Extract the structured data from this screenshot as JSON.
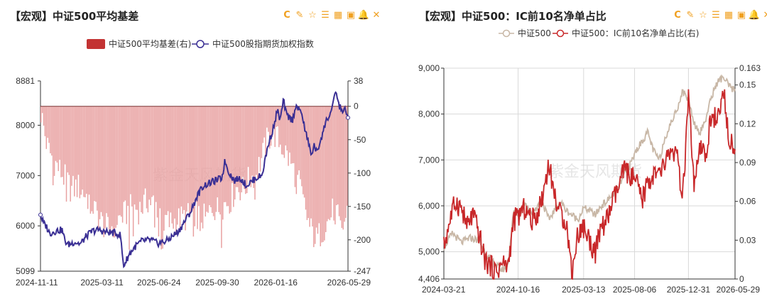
{
  "left_panel": {
    "title": "【宏观】中证500平均基差",
    "watermark": "紫金天风期货",
    "toolbar": [
      {
        "name": "refresh-icon",
        "glyph": "C"
      },
      {
        "name": "edit-icon",
        "glyph": "✎"
      },
      {
        "name": "star-icon",
        "glyph": "☆"
      },
      {
        "name": "list-icon",
        "glyph": "☰"
      },
      {
        "name": "table-icon",
        "glyph": "▦"
      },
      {
        "name": "save-icon",
        "glyph": "▣"
      },
      {
        "name": "bell-icon",
        "glyph": "🔔"
      },
      {
        "name": "expand-icon",
        "glyph": "✕"
      }
    ],
    "chart_data": {
      "type": "bar+line",
      "legend": [
        "中证500平均基差(右)",
        "中证500股指期货加权指数"
      ],
      "legend_placement": "top",
      "colors": {
        "bar": "#e8a0a0",
        "bar_legend": "#c33333",
        "line": "#3a2f94"
      },
      "x_ticks": [
        "2024-11-11",
        "2025-03-11",
        "2025-06-24",
        "2025-09-30",
        "2026-01-16",
        "2026-05-29"
      ],
      "y_left": {
        "ticks": [
          "8881",
          "8000",
          "7000",
          "6000",
          "5099"
        ],
        "min": 5099,
        "max": 8881
      },
      "y_right": {
        "ticks": [
          "38",
          "0",
          "-50",
          "-100",
          "-150",
          "-200",
          "-247"
        ],
        "min": -247,
        "max": 38
      },
      "line_anchors": [
        [
          0,
          6220
        ],
        [
          0.01,
          6050
        ],
        [
          0.02,
          5980
        ],
        [
          0.03,
          5850
        ],
        [
          0.05,
          5900
        ],
        [
          0.07,
          5920
        ],
        [
          0.08,
          5700
        ],
        [
          0.09,
          5620
        ],
        [
          0.11,
          5680
        ],
        [
          0.13,
          5640
        ],
        [
          0.15,
          5800
        ],
        [
          0.17,
          5900
        ],
        [
          0.19,
          5920
        ],
        [
          0.21,
          5880
        ],
        [
          0.24,
          5860
        ],
        [
          0.26,
          5820
        ],
        [
          0.27,
          5200
        ],
        [
          0.29,
          5450
        ],
        [
          0.31,
          5600
        ],
        [
          0.33,
          5700
        ],
        [
          0.36,
          5720
        ],
        [
          0.38,
          5650
        ],
        [
          0.41,
          5700
        ],
        [
          0.43,
          5800
        ],
        [
          0.45,
          5900
        ],
        [
          0.47,
          6100
        ],
        [
          0.49,
          6300
        ],
        [
          0.51,
          6600
        ],
        [
          0.53,
          6800
        ],
        [
          0.55,
          6850
        ],
        [
          0.57,
          6900
        ],
        [
          0.59,
          6950
        ],
        [
          0.6,
          7300
        ],
        [
          0.61,
          7100
        ],
        [
          0.63,
          6900
        ],
        [
          0.65,
          6950
        ],
        [
          0.67,
          6800
        ],
        [
          0.68,
          6850
        ],
        [
          0.7,
          6950
        ],
        [
          0.72,
          7000
        ],
        [
          0.74,
          7600
        ],
        [
          0.76,
          8000
        ],
        [
          0.77,
          8300
        ],
        [
          0.78,
          8100
        ],
        [
          0.79,
          8500
        ],
        [
          0.8,
          8200
        ],
        [
          0.82,
          8100
        ],
        [
          0.83,
          8400
        ],
        [
          0.84,
          8300
        ],
        [
          0.85,
          8250
        ],
        [
          0.86,
          7900
        ],
        [
          0.87,
          7700
        ],
        [
          0.88,
          7400
        ],
        [
          0.89,
          7600
        ],
        [
          0.9,
          7450
        ],
        [
          0.91,
          7700
        ],
        [
          0.92,
          7900
        ],
        [
          0.93,
          8100
        ],
        [
          0.94,
          8200
        ],
        [
          0.95,
          8350
        ],
        [
          0.96,
          8700
        ],
        [
          0.97,
          8400
        ],
        [
          0.98,
          8300
        ],
        [
          0.99,
          8300
        ],
        [
          1,
          8150
        ]
      ],
      "bar_anchors": [
        [
          0,
          -10
        ],
        [
          0.02,
          -60
        ],
        [
          0.04,
          -80
        ],
        [
          0.06,
          -95
        ],
        [
          0.08,
          -110
        ],
        [
          0.1,
          -125
        ],
        [
          0.12,
          -120
        ],
        [
          0.14,
          -130
        ],
        [
          0.16,
          -140
        ],
        [
          0.18,
          -160
        ],
        [
          0.2,
          -175
        ],
        [
          0.22,
          -185
        ],
        [
          0.25,
          -170
        ],
        [
          0.28,
          -160
        ],
        [
          0.3,
          -150
        ],
        [
          0.32,
          -155
        ],
        [
          0.35,
          -140
        ],
        [
          0.38,
          -150
        ],
        [
          0.4,
          -165
        ],
        [
          0.42,
          -175
        ],
        [
          0.45,
          -170
        ],
        [
          0.48,
          -165
        ],
        [
          0.5,
          -160
        ],
        [
          0.52,
          -165
        ],
        [
          0.54,
          -170
        ],
        [
          0.56,
          -150
        ],
        [
          0.58,
          -155
        ],
        [
          0.6,
          -145
        ],
        [
          0.62,
          -140
        ],
        [
          0.64,
          -120
        ],
        [
          0.66,
          -125
        ],
        [
          0.68,
          -110
        ],
        [
          0.7,
          -100
        ],
        [
          0.72,
          -80
        ],
        [
          0.74,
          -50
        ],
        [
          0.76,
          -40
        ],
        [
          0.78,
          -55
        ],
        [
          0.8,
          -70
        ],
        [
          0.82,
          -90
        ],
        [
          0.84,
          -110
        ],
        [
          0.86,
          -150
        ],
        [
          0.88,
          -185
        ],
        [
          0.9,
          -200
        ],
        [
          0.92,
          -185
        ],
        [
          0.94,
          -170
        ],
        [
          0.96,
          -150
        ],
        [
          0.98,
          -190
        ],
        [
          1,
          -160
        ]
      ]
    }
  },
  "right_panel": {
    "title": "【宏观】中证500：IC前10名净单占比",
    "watermark": "紫金天风期货",
    "toolbar": [
      {
        "name": "refresh-icon",
        "glyph": "C"
      },
      {
        "name": "edit-icon",
        "glyph": "✎"
      },
      {
        "name": "star-icon",
        "glyph": "☆"
      },
      {
        "name": "list-icon",
        "glyph": "☰"
      },
      {
        "name": "table-icon",
        "glyph": "▦"
      },
      {
        "name": "save-icon",
        "glyph": "▣"
      },
      {
        "name": "bell-icon",
        "glyph": "🔔"
      },
      {
        "name": "expand-icon",
        "glyph": "✕"
      }
    ],
    "chart_data": {
      "type": "line",
      "legend": [
        "中证500",
        "中证500：IC前10名净单占比(右)"
      ],
      "legend_placement": "top",
      "colors": {
        "series1": "#c8b7a6",
        "series2": "#c8282a"
      },
      "x_ticks": [
        "2024-03-21",
        "2024-10-16",
        "2025-03-13",
        "2025-08-06",
        "2025-12-31",
        "2026-05-29"
      ],
      "y_left": {
        "ticks": [
          "9,000",
          "8,000",
          "7,000",
          "6,000",
          "5,000",
          "4,406"
        ],
        "min": 4406,
        "max": 9000
      },
      "y_right": {
        "ticks": [
          "0.163",
          "0.15",
          "0.12",
          "0.09",
          "0.06",
          "0.03",
          "0"
        ],
        "min": 0,
        "max": 0.163
      },
      "series1_anchors": [
        [
          0,
          5100
        ],
        [
          0.03,
          5400
        ],
        [
          0.06,
          5200
        ],
        [
          0.09,
          5300
        ],
        [
          0.12,
          5250
        ],
        [
          0.15,
          4900
        ],
        [
          0.18,
          4700
        ],
        [
          0.2,
          4600
        ],
        [
          0.22,
          4700
        ],
        [
          0.24,
          5900
        ],
        [
          0.26,
          5800
        ],
        [
          0.28,
          6100
        ],
        [
          0.3,
          5800
        ],
        [
          0.32,
          6000
        ],
        [
          0.34,
          6050
        ],
        [
          0.36,
          5700
        ],
        [
          0.38,
          5900
        ],
        [
          0.4,
          6100
        ],
        [
          0.42,
          5900
        ],
        [
          0.44,
          5800
        ],
        [
          0.46,
          5700
        ],
        [
          0.48,
          5950
        ],
        [
          0.5,
          5900
        ],
        [
          0.52,
          5800
        ],
        [
          0.54,
          6000
        ],
        [
          0.56,
          6100
        ],
        [
          0.58,
          6250
        ],
        [
          0.6,
          6400
        ],
        [
          0.62,
          6700
        ],
        [
          0.64,
          6900
        ],
        [
          0.66,
          7200
        ],
        [
          0.68,
          7400
        ],
        [
          0.7,
          7600
        ],
        [
          0.72,
          7200
        ],
        [
          0.74,
          7000
        ],
        [
          0.76,
          7500
        ],
        [
          0.78,
          7800
        ],
        [
          0.8,
          8100
        ],
        [
          0.82,
          8500
        ],
        [
          0.84,
          8300
        ],
        [
          0.86,
          7800
        ],
        [
          0.88,
          7600
        ],
        [
          0.9,
          7900
        ],
        [
          0.92,
          8400
        ],
        [
          0.94,
          8700
        ],
        [
          0.96,
          8800
        ],
        [
          0.98,
          8600
        ],
        [
          1,
          8500
        ]
      ],
      "series2_anchors": [
        [
          0,
          0.025
        ],
        [
          0.02,
          0.045
        ],
        [
          0.04,
          0.06
        ],
        [
          0.06,
          0.055
        ],
        [
          0.08,
          0.04
        ],
        [
          0.1,
          0.05
        ],
        [
          0.12,
          0.035
        ],
        [
          0.14,
          0.015
        ],
        [
          0.16,
          0.01
        ],
        [
          0.18,
          0.005
        ],
        [
          0.2,
          0.012
        ],
        [
          0.22,
          0.01
        ],
        [
          0.24,
          0.045
        ],
        [
          0.26,
          0.05
        ],
        [
          0.28,
          0.055
        ],
        [
          0.3,
          0.045
        ],
        [
          0.32,
          0.05
        ],
        [
          0.34,
          0.065
        ],
        [
          0.36,
          0.09
        ],
        [
          0.38,
          0.065
        ],
        [
          0.4,
          0.05
        ],
        [
          0.42,
          0.045
        ],
        [
          0.44,
          0.005
        ],
        [
          0.46,
          0.035
        ],
        [
          0.48,
          0.04
        ],
        [
          0.5,
          0.03
        ],
        [
          0.52,
          0.02
        ],
        [
          0.54,
          0.04
        ],
        [
          0.56,
          0.045
        ],
        [
          0.58,
          0.06
        ],
        [
          0.6,
          0.07
        ],
        [
          0.62,
          0.085
        ],
        [
          0.64,
          0.08
        ],
        [
          0.66,
          0.075
        ],
        [
          0.68,
          0.06
        ],
        [
          0.7,
          0.075
        ],
        [
          0.72,
          0.08
        ],
        [
          0.74,
          0.08
        ],
        [
          0.76,
          0.09
        ],
        [
          0.78,
          0.1
        ],
        [
          0.8,
          0.095
        ],
        [
          0.82,
          0.06
        ],
        [
          0.84,
          0.14
        ],
        [
          0.86,
          0.07
        ],
        [
          0.88,
          0.1
        ],
        [
          0.9,
          0.095
        ],
        [
          0.92,
          0.13
        ],
        [
          0.94,
          0.12
        ],
        [
          0.96,
          0.145
        ],
        [
          0.98,
          0.11
        ],
        [
          1,
          0.1
        ]
      ]
    }
  }
}
